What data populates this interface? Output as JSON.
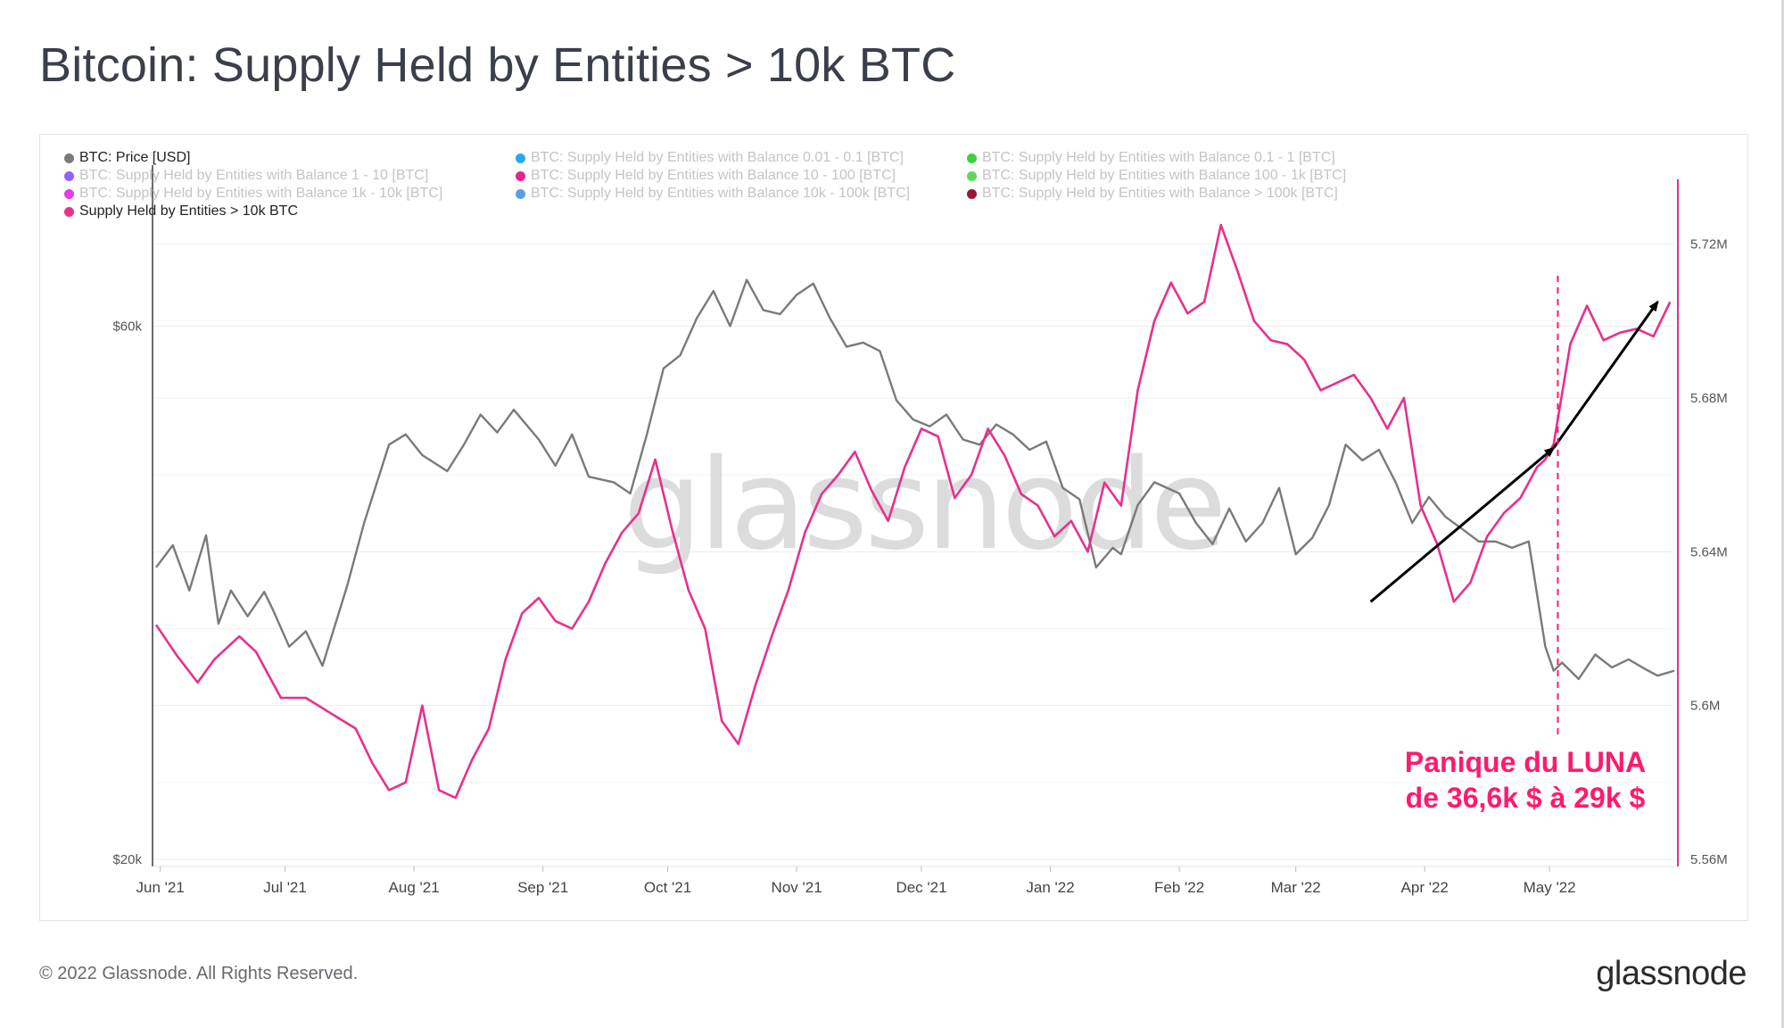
{
  "header": {
    "title": "Bitcoin: Supply Held by Entities > 10k BTC"
  },
  "legend": [
    {
      "label": "BTC: Price [USD]",
      "color": "#7a7a7a",
      "active": true
    },
    {
      "label": "BTC: Supply Held by Entities with Balance 0.01 - 0.1 [BTC]",
      "color": "#2aa8f2",
      "active": false
    },
    {
      "label": "BTC: Supply Held by Entities with Balance 0.1 - 1 [BTC]",
      "color": "#3dd13d",
      "active": false
    },
    {
      "label": "BTC: Supply Held by Entities with Balance 1 - 10 [BTC]",
      "color": "#8f63ff",
      "active": false
    },
    {
      "label": "BTC: Supply Held by Entities with Balance 10 - 100 [BTC]",
      "color": "#e7238e",
      "active": false
    },
    {
      "label": "BTC: Supply Held by Entities with Balance 100 - 1k [BTC]",
      "color": "#5ed65e",
      "active": false
    },
    {
      "label": "BTC: Supply Held by Entities with Balance 1k - 10k [BTC]",
      "color": "#e83ae8",
      "active": false
    },
    {
      "label": "BTC: Supply Held by Entities with Balance 10k - 100k [BTC]",
      "color": "#5b9ee8",
      "active": false
    },
    {
      "label": "BTC: Supply Held by Entities with Balance > 100k [BTC]",
      "color": "#9b1535",
      "active": false
    },
    {
      "label": "Supply Held by Entities > 10k BTC",
      "color": "#e8308c",
      "active": true
    }
  ],
  "watermark": "glassnode",
  "annotation": {
    "line1": "Panique du LUNA",
    "line2": "de 36,6k $ à 29k $",
    "color": "#ff1a6e"
  },
  "footer": {
    "copyright": "© 2022 Glassnode. All Rights Reserved.",
    "brand": "glassnode"
  },
  "colors": {
    "price": "#7a7a7a",
    "supply": "#e8308c",
    "arrow": "#000000",
    "grid": "#ececec"
  },
  "chart_data": {
    "type": "line",
    "title": "Bitcoin: Supply Held by Entities > 10k BTC",
    "x_range": [
      "2021-05-31",
      "2022-05-31"
    ],
    "x_tick_labels": [
      "Jun '21",
      "Jul '21",
      "Aug '21",
      "Sep '21",
      "Oct '21",
      "Nov '21",
      "Dec '21",
      "Jan '22",
      "Feb '22",
      "Mar '22",
      "Apr '22",
      "May '22"
    ],
    "x_tick_days": [
      1,
      31,
      62,
      93,
      123,
      154,
      184,
      215,
      246,
      274,
      305,
      335
    ],
    "y_left": {
      "scale": "log",
      "range": [
        20000,
        80000
      ],
      "tick_values": [
        20000,
        60000
      ],
      "tick_labels": [
        "$20k",
        "$60k"
      ]
    },
    "y_right": {
      "scale": "linear",
      "range": [
        5.56,
        5.735
      ],
      "tick_values": [
        5.56,
        5.6,
        5.64,
        5.68,
        5.72
      ],
      "tick_labels": [
        "5.56M",
        "5.6M",
        "5.64M",
        "5.68M",
        "5.72M"
      ]
    },
    "series": [
      {
        "name": "BTC: Price [USD]",
        "axis": "left",
        "unit": "USD",
        "days": [
          0,
          4,
          8,
          12,
          15,
          18,
          22,
          26,
          28,
          32,
          36,
          40,
          46,
          50,
          56,
          60,
          64,
          70,
          74,
          78,
          82,
          86,
          92,
          96,
          100,
          104,
          110,
          114,
          118,
          122,
          126,
          130,
          134,
          138,
          142,
          146,
          150,
          154,
          158,
          162,
          166,
          170,
          174,
          178,
          182,
          186,
          190,
          194,
          198,
          202,
          206,
          210,
          214,
          218,
          222,
          226,
          230,
          232,
          236,
          240,
          246,
          250,
          254,
          258,
          262,
          266,
          270,
          274,
          278,
          282,
          286,
          290,
          294,
          298,
          302,
          306,
          310,
          314,
          318,
          322,
          326,
          330,
          334,
          336,
          338,
          342,
          346,
          350,
          354,
          358,
          361,
          365
        ],
        "values": [
          36500,
          38200,
          34800,
          39000,
          32500,
          34800,
          33000,
          34700,
          33500,
          31000,
          32000,
          29800,
          35200,
          40000,
          47000,
          48000,
          46000,
          44500,
          47000,
          50000,
          48200,
          50500,
          47500,
          45000,
          48000,
          44000,
          43500,
          42500,
          48000,
          55000,
          56500,
          61000,
          64500,
          60000,
          66000,
          62000,
          61500,
          64000,
          65500,
          61000,
          57500,
          58000,
          57000,
          51500,
          49500,
          48800,
          50000,
          47500,
          47000,
          49000,
          48000,
          46500,
          47300,
          43000,
          42000,
          36500,
          38000,
          37500,
          41500,
          43500,
          42500,
          40000,
          38300,
          41200,
          38500,
          40000,
          43000,
          37500,
          38800,
          41500,
          47000,
          45500,
          46500,
          43500,
          40000,
          42200,
          40500,
          39500,
          38500,
          38500,
          38000,
          38500,
          31000,
          29500,
          30000,
          29000,
          30500,
          29700,
          30200,
          29600,
          29200,
          29500
        ]
      },
      {
        "name": "Supply Held by Entities > 10k BTC",
        "axis": "right",
        "unit": "M BTC",
        "days": [
          0,
          5,
          10,
          14,
          20,
          24,
          30,
          36,
          42,
          48,
          52,
          56,
          60,
          64,
          68,
          72,
          76,
          80,
          84,
          88,
          92,
          96,
          100,
          104,
          108,
          112,
          116,
          120,
          124,
          128,
          132,
          136,
          140,
          144,
          148,
          152,
          156,
          160,
          164,
          168,
          172,
          176,
          180,
          184,
          188,
          192,
          196,
          200,
          204,
          208,
          212,
          216,
          220,
          224,
          228,
          232,
          236,
          240,
          244,
          248,
          252,
          256,
          260,
          264,
          268,
          272,
          276,
          280,
          284,
          288,
          292,
          296,
          300,
          304,
          308,
          312,
          316,
          320,
          324,
          328,
          332,
          334,
          336,
          340,
          344,
          348,
          352,
          356,
          360,
          364
        ],
        "values": [
          5.621,
          5.613,
          5.606,
          5.612,
          5.618,
          5.614,
          5.602,
          5.602,
          5.598,
          5.594,
          5.585,
          5.578,
          5.58,
          5.6,
          5.578,
          5.576,
          5.586,
          5.594,
          5.612,
          5.624,
          5.628,
          5.622,
          5.62,
          5.627,
          5.637,
          5.645,
          5.65,
          5.664,
          5.646,
          5.63,
          5.62,
          5.596,
          5.59,
          5.605,
          5.618,
          5.63,
          5.645,
          5.655,
          5.66,
          5.666,
          5.656,
          5.648,
          5.662,
          5.672,
          5.67,
          5.654,
          5.66,
          5.672,
          5.665,
          5.655,
          5.652,
          5.644,
          5.648,
          5.64,
          5.658,
          5.652,
          5.682,
          5.7,
          5.71,
          5.702,
          5.705,
          5.725,
          5.713,
          5.7,
          5.695,
          5.694,
          5.69,
          5.682,
          5.684,
          5.686,
          5.68,
          5.672,
          5.68,
          5.652,
          5.642,
          5.627,
          5.632,
          5.644,
          5.65,
          5.654,
          5.662,
          5.664,
          5.668,
          5.694,
          5.704,
          5.695,
          5.697,
          5.698,
          5.696,
          5.705
        ]
      }
    ],
    "annotations": [
      {
        "type": "arrow",
        "from_day": 292,
        "from_value": 5.627,
        "to_day": 336,
        "to_value": 5.667,
        "axis": "right"
      },
      {
        "type": "arrow",
        "from_day": 336,
        "from_value": 5.667,
        "to_day": 361,
        "to_value": 5.705,
        "axis": "right"
      },
      {
        "type": "vline",
        "day": 337,
        "style": "dashed",
        "color": "#ff1a6e",
        "label": "Panique du LUNA de 36,6k $ à 29k $"
      }
    ]
  }
}
